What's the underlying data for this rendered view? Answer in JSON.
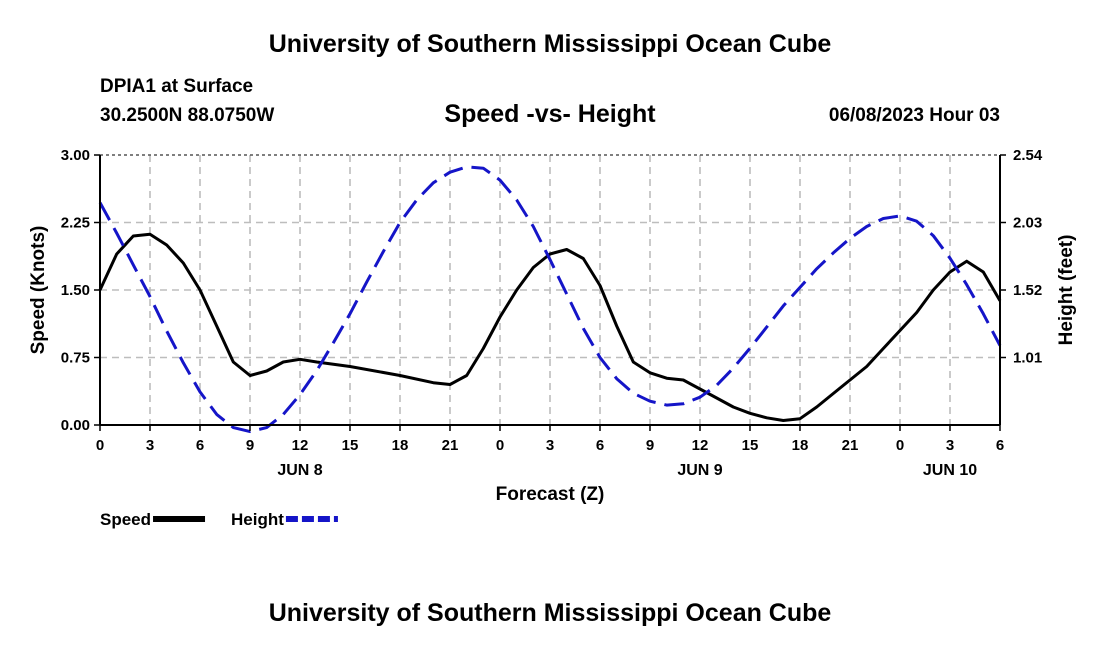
{
  "header": {
    "title": "University of Southern Mississippi Ocean Cube",
    "station": "DPIA1 at Surface",
    "coords": "30.2500N  88.0750W",
    "chart_title": "Speed -vs- Height",
    "datetime": "06/08/2023 Hour 03"
  },
  "footer": {
    "title": "University of Southern Mississippi Ocean Cube"
  },
  "chart_data": {
    "type": "line",
    "title": "Speed -vs- Height",
    "xlabel": "Forecast (Z)",
    "ylabel_left": "Speed (Knots)",
    "ylabel_right": "Height (feet)",
    "x_hours_range": [
      0,
      54
    ],
    "x_ticks": [
      {
        "h": 0,
        "label": "0"
      },
      {
        "h": 3,
        "label": "3"
      },
      {
        "h": 6,
        "label": "6"
      },
      {
        "h": 9,
        "label": "9"
      },
      {
        "h": 12,
        "label": "12"
      },
      {
        "h": 15,
        "label": "15"
      },
      {
        "h": 18,
        "label": "18"
      },
      {
        "h": 21,
        "label": "21"
      },
      {
        "h": 24,
        "label": "0"
      },
      {
        "h": 27,
        "label": "3"
      },
      {
        "h": 30,
        "label": "6"
      },
      {
        "h": 33,
        "label": "9"
      },
      {
        "h": 36,
        "label": "12"
      },
      {
        "h": 39,
        "label": "15"
      },
      {
        "h": 42,
        "label": "18"
      },
      {
        "h": 45,
        "label": "21"
      },
      {
        "h": 48,
        "label": "0"
      },
      {
        "h": 51,
        "label": "3"
      },
      {
        "h": 54,
        "label": "6"
      }
    ],
    "day_labels": [
      {
        "h": 12,
        "label": "JUN 8"
      },
      {
        "h": 36,
        "label": "JUN 9"
      },
      {
        "h": 51,
        "label": "JUN 10"
      }
    ],
    "y_left": {
      "range": [
        0,
        3
      ],
      "ticks": [
        0,
        0.75,
        1.5,
        2.25,
        3
      ],
      "labels": [
        "0.00",
        "0.75",
        "1.50",
        "2.25",
        "3.00"
      ]
    },
    "y_right": {
      "range": [
        0.5,
        2.54
      ],
      "ticks": [
        1.01,
        1.52,
        2.03,
        2.54
      ],
      "labels": [
        "1.01",
        "1.52",
        "2.03",
        "2.54"
      ]
    },
    "grid": true,
    "series": [
      {
        "name": "Speed",
        "axis": "left",
        "color": "#000000",
        "dash": "solid",
        "points": [
          [
            0,
            1.5
          ],
          [
            1,
            1.9
          ],
          [
            2,
            2.1
          ],
          [
            3,
            2.12
          ],
          [
            4,
            2.0
          ],
          [
            5,
            1.8
          ],
          [
            6,
            1.5
          ],
          [
            7,
            1.1
          ],
          [
            8,
            0.7
          ],
          [
            9,
            0.55
          ],
          [
            10,
            0.6
          ],
          [
            11,
            0.7
          ],
          [
            12,
            0.73
          ],
          [
            13,
            0.7
          ],
          [
            15,
            0.65
          ],
          [
            18,
            0.55
          ],
          [
            20,
            0.47
          ],
          [
            21,
            0.45
          ],
          [
            22,
            0.55
          ],
          [
            23,
            0.85
          ],
          [
            24,
            1.2
          ],
          [
            25,
            1.5
          ],
          [
            26,
            1.75
          ],
          [
            27,
            1.9
          ],
          [
            28,
            1.95
          ],
          [
            29,
            1.85
          ],
          [
            30,
            1.55
          ],
          [
            31,
            1.1
          ],
          [
            32,
            0.7
          ],
          [
            33,
            0.58
          ],
          [
            34,
            0.52
          ],
          [
            35,
            0.5
          ],
          [
            36,
            0.4
          ],
          [
            37,
            0.3
          ],
          [
            38,
            0.2
          ],
          [
            39,
            0.13
          ],
          [
            40,
            0.08
          ],
          [
            41,
            0.05
          ],
          [
            42,
            0.07
          ],
          [
            43,
            0.2
          ],
          [
            44,
            0.35
          ],
          [
            45,
            0.5
          ],
          [
            46,
            0.65
          ],
          [
            47,
            0.85
          ],
          [
            48,
            1.05
          ],
          [
            49,
            1.25
          ],
          [
            50,
            1.5
          ],
          [
            51,
            1.7
          ],
          [
            52,
            1.82
          ],
          [
            53,
            1.7
          ],
          [
            54,
            1.38
          ]
        ]
      },
      {
        "name": "Height",
        "axis": "right",
        "color": "#1515c8",
        "dash": "dashed",
        "points": [
          [
            0,
            2.18
          ],
          [
            1,
            1.95
          ],
          [
            2,
            1.71
          ],
          [
            3,
            1.47
          ],
          [
            4,
            1.21
          ],
          [
            5,
            0.97
          ],
          [
            6,
            0.75
          ],
          [
            7,
            0.58
          ],
          [
            8,
            0.48
          ],
          [
            9,
            0.45
          ],
          [
            10,
            0.48
          ],
          [
            11,
            0.58
          ],
          [
            12,
            0.73
          ],
          [
            13,
            0.91
          ],
          [
            14,
            1.12
          ],
          [
            15,
            1.34
          ],
          [
            16,
            1.58
          ],
          [
            17,
            1.81
          ],
          [
            18,
            2.03
          ],
          [
            19,
            2.2
          ],
          [
            20,
            2.33
          ],
          [
            21,
            2.41
          ],
          [
            22,
            2.45
          ],
          [
            23,
            2.44
          ],
          [
            24,
            2.35
          ],
          [
            25,
            2.2
          ],
          [
            26,
            2.0
          ],
          [
            27,
            1.75
          ],
          [
            28,
            1.49
          ],
          [
            29,
            1.23
          ],
          [
            30,
            1.01
          ],
          [
            31,
            0.85
          ],
          [
            32,
            0.74
          ],
          [
            33,
            0.68
          ],
          [
            34,
            0.65
          ],
          [
            35,
            0.66
          ],
          [
            36,
            0.71
          ],
          [
            37,
            0.8
          ],
          [
            38,
            0.93
          ],
          [
            39,
            1.08
          ],
          [
            40,
            1.24
          ],
          [
            41,
            1.4
          ],
          [
            42,
            1.54
          ],
          [
            43,
            1.68
          ],
          [
            44,
            1.8
          ],
          [
            45,
            1.91
          ],
          [
            46,
            2.0
          ],
          [
            47,
            2.06
          ],
          [
            48,
            2.08
          ],
          [
            49,
            2.04
          ],
          [
            50,
            1.93
          ],
          [
            51,
            1.76
          ],
          [
            52,
            1.56
          ],
          [
            53,
            1.34
          ],
          [
            54,
            1.1
          ]
        ]
      }
    ],
    "legend": [
      {
        "name": "Speed",
        "color": "#000000",
        "dash": "solid"
      },
      {
        "name": "Height",
        "color": "#1515c8",
        "dash": "dashed"
      }
    ],
    "legend_position": "bottom-left"
  }
}
